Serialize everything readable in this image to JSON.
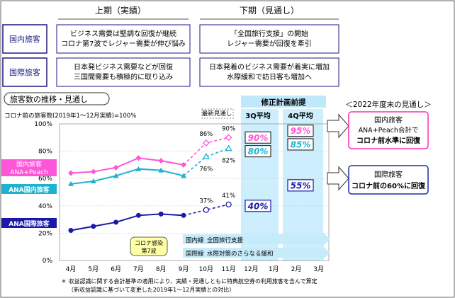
{
  "table": {
    "col_headers": [
      "上期（実績）",
      "下期（見通し）"
    ],
    "rows": [
      {
        "label": "国内旅客",
        "h1": [
          "ビジネス需要は堅調な回復が継続",
          "コロナ第7波でレジャー需要が伸び悩み"
        ],
        "h2": [
          "「全国旅行支援」の開始",
          "レジャー需要が回復を牽引"
        ]
      },
      {
        "label": "国際旅客",
        "h1": [
          "日本発ビジネス需要などが回復",
          "三国間需要も積極的に取り込み"
        ],
        "h2": [
          "日本発着のビジネス需要が着実に増加",
          "水際緩和で訪日客も増加へ"
        ]
      }
    ]
  },
  "section_title": "旅客数の推移・見通し",
  "ylabel": "コロナ前の旅客数(2019年1～12月実績)=100%",
  "latest_label": "最新見通し",
  "revised_label": "修正計画前提",
  "col_3q": "3Q平均",
  "col_4q": "4Q平均",
  "series_labels": {
    "dom_peach": [
      "国内旅客",
      "ANA+Peach"
    ],
    "ana_dom": "ANA国内旅客",
    "ana_intl": "ANA国際旅客"
  },
  "covid_label": [
    "コロナ感染",
    "第7波"
  ],
  "policy_arrows": [
    {
      "prefix": "国内線",
      "text": "全国旅行支援"
    },
    {
      "prefix": "国際線",
      "text": "水際対策のさらなる緩和"
    }
  ],
  "forecast_title": "＜2022年度末の見通し＞",
  "forecast_boxes": [
    {
      "lines": [
        "国内旅客",
        "ANA+Peach合計で"
      ],
      "bold": "コロナ前水準に回復",
      "color": "#ff2db8"
    },
    {
      "lines": [
        "国際旅客"
      ],
      "bold": "コロナ前の60%に回復",
      "color": "#1a2fa8"
    }
  ],
  "footnote": [
    "＊ 収益認識に関する会計基準の適用により、実績・見通しともに特典航空券の利用旅客を含んで算定",
    "（新収益認識に基づいて変更した2019年1～12月実績との対比）"
  ],
  "colors": {
    "dom_peach": "#ff55d8",
    "ana_dom": "#1fb2d0",
    "ana_intl": "#1a1aa6",
    "header_fill": "#bfe8fa",
    "arrow_fill": "#c6ecfb"
  },
  "chart_data": {
    "type": "line",
    "categories": [
      "4月",
      "5月",
      "6月",
      "7月",
      "8月",
      "9月",
      "10月",
      "11月",
      "12月",
      "1月",
      "2月",
      "3月"
    ],
    "ylim": [
      0,
      100
    ],
    "yticks": [
      "0%",
      "20%",
      "40%",
      "60%",
      "80%",
      "100%"
    ],
    "series": [
      {
        "name": "国内旅客 ANA+Peach",
        "key": "dom_peach",
        "actual": [
          64,
          65,
          68,
          75,
          73,
          70
        ],
        "forecast": [
          86,
          90
        ],
        "forecast_labels": [
          "86%",
          "90%"
        ],
        "q3": "90%",
        "q4": "95%",
        "q3_value": 90,
        "q4_value": 95
      },
      {
        "name": "ANA国内旅客",
        "key": "ana_dom",
        "actual": [
          56,
          58,
          62,
          67,
          66,
          62
        ],
        "forecast": [
          76,
          82
        ],
        "forecast_labels": [
          "76%",
          "82%"
        ],
        "q3": "80%",
        "q4": "85%",
        "q3_value": 80,
        "q4_value": 85
      },
      {
        "name": "ANA国際旅客",
        "key": "ana_intl",
        "actual": [
          22,
          25,
          28,
          33,
          34,
          33
        ],
        "forecast": [
          37,
          41
        ],
        "forecast_labels": [
          "37%",
          "41%"
        ],
        "q3": "40%",
        "q4": "55%",
        "q3_value": 40,
        "q4_value": 55
      }
    ]
  }
}
